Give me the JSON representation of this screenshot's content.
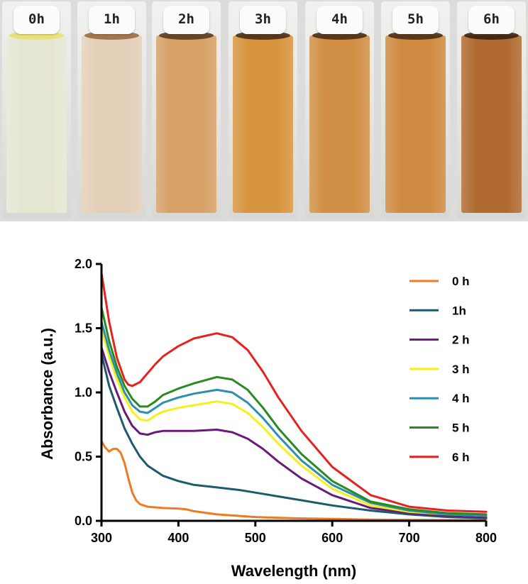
{
  "photo": {
    "vials": [
      {
        "label": "0h",
        "color": "#e5e6d2",
        "meniscus": "#e8e070"
      },
      {
        "label": "1h",
        "color": "#e3cfb8",
        "meniscus": "#9a6a40"
      },
      {
        "label": "2h",
        "color": "#d6a066",
        "meniscus": "#5a3a20"
      },
      {
        "label": "3h",
        "color": "#d7943f",
        "meniscus": "#4a2c16"
      },
      {
        "label": "4h",
        "color": "#d08f44",
        "meniscus": "#4a2c16"
      },
      {
        "label": "5h",
        "color": "#cf8b41",
        "meniscus": "#4a2c16"
      },
      {
        "label": "6h",
        "color": "#b06a30",
        "meniscus": "#3b2010"
      }
    ]
  },
  "chart_data": {
    "type": "line",
    "title": "",
    "xlabel": "Wavelength (nm)",
    "ylabel": "Absorbance (a.u.)",
    "xlim": [
      300,
      800
    ],
    "ylim": [
      0,
      2.0
    ],
    "xticks": [
      300,
      400,
      500,
      600,
      700,
      800
    ],
    "yticks": [
      "0.0",
      "0.5",
      "1.0",
      "1.5",
      "2.0"
    ],
    "grid": false,
    "legend_position": "right",
    "series": [
      {
        "name": "0 h",
        "color": "#f07a22",
        "x": [
          300,
          305,
          310,
          315,
          320,
          325,
          330,
          335,
          340,
          345,
          350,
          360,
          380,
          400,
          410,
          420,
          450,
          500,
          550,
          600,
          650,
          700,
          750,
          800
        ],
        "y": [
          0.62,
          0.57,
          0.54,
          0.56,
          0.56,
          0.53,
          0.45,
          0.33,
          0.22,
          0.16,
          0.13,
          0.11,
          0.1,
          0.095,
          0.09,
          0.075,
          0.05,
          0.03,
          0.02,
          0.015,
          0.01,
          0.008,
          0.006,
          0.005
        ]
      },
      {
        "name": "1h",
        "color": "#1d5a6e",
        "x": [
          300,
          310,
          320,
          330,
          340,
          350,
          360,
          370,
          380,
          400,
          420,
          450,
          480,
          500,
          530,
          560,
          600,
          650,
          700,
          750,
          800
        ],
        "y": [
          1.3,
          1.05,
          0.88,
          0.72,
          0.6,
          0.5,
          0.43,
          0.39,
          0.35,
          0.31,
          0.28,
          0.26,
          0.24,
          0.22,
          0.19,
          0.16,
          0.12,
          0.08,
          0.05,
          0.03,
          0.02
        ]
      },
      {
        "name": "2 h",
        "color": "#6a1a78",
        "x": [
          300,
          310,
          320,
          330,
          340,
          350,
          360,
          370,
          380,
          400,
          420,
          450,
          470,
          490,
          510,
          530,
          560,
          600,
          650,
          700,
          750,
          800
        ],
        "y": [
          1.35,
          1.16,
          1.0,
          0.85,
          0.74,
          0.68,
          0.67,
          0.69,
          0.7,
          0.7,
          0.7,
          0.71,
          0.69,
          0.64,
          0.56,
          0.46,
          0.33,
          0.2,
          0.1,
          0.06,
          0.04,
          0.03
        ]
      },
      {
        "name": "3 h",
        "color": "#f6f01a",
        "x": [
          300,
          310,
          320,
          330,
          340,
          350,
          360,
          370,
          380,
          400,
          420,
          450,
          470,
          490,
          510,
          530,
          560,
          600,
          650,
          700,
          750,
          800
        ],
        "y": [
          1.5,
          1.28,
          1.1,
          0.96,
          0.85,
          0.79,
          0.78,
          0.82,
          0.85,
          0.88,
          0.9,
          0.93,
          0.91,
          0.84,
          0.73,
          0.6,
          0.43,
          0.25,
          0.12,
          0.07,
          0.05,
          0.04
        ]
      },
      {
        "name": "4 h",
        "color": "#2c8fae",
        "x": [
          300,
          310,
          320,
          330,
          340,
          350,
          360,
          370,
          380,
          400,
          420,
          450,
          470,
          490,
          510,
          530,
          560,
          600,
          650,
          700,
          750,
          800
        ],
        "y": [
          1.55,
          1.33,
          1.15,
          1.0,
          0.9,
          0.85,
          0.84,
          0.88,
          0.92,
          0.96,
          0.99,
          1.02,
          1.0,
          0.92,
          0.8,
          0.66,
          0.47,
          0.28,
          0.14,
          0.08,
          0.05,
          0.04
        ]
      },
      {
        "name": "5 h",
        "color": "#2a8a22",
        "x": [
          300,
          310,
          320,
          330,
          340,
          350,
          360,
          370,
          380,
          400,
          420,
          450,
          470,
          490,
          510,
          530,
          560,
          600,
          650,
          700,
          750,
          800
        ],
        "y": [
          1.66,
          1.4,
          1.2,
          1.05,
          0.95,
          0.89,
          0.89,
          0.93,
          0.98,
          1.03,
          1.07,
          1.12,
          1.1,
          1.02,
          0.88,
          0.72,
          0.52,
          0.31,
          0.15,
          0.09,
          0.06,
          0.05
        ]
      },
      {
        "name": "6 h",
        "color": "#e8211f",
        "x": [
          300,
          310,
          320,
          330,
          335,
          340,
          350,
          360,
          370,
          380,
          400,
          420,
          450,
          470,
          490,
          510,
          530,
          560,
          600,
          650,
          700,
          750,
          800
        ],
        "y": [
          1.93,
          1.55,
          1.27,
          1.1,
          1.06,
          1.05,
          1.08,
          1.15,
          1.22,
          1.28,
          1.36,
          1.42,
          1.46,
          1.43,
          1.33,
          1.16,
          0.96,
          0.7,
          0.42,
          0.2,
          0.11,
          0.08,
          0.07
        ]
      }
    ]
  }
}
